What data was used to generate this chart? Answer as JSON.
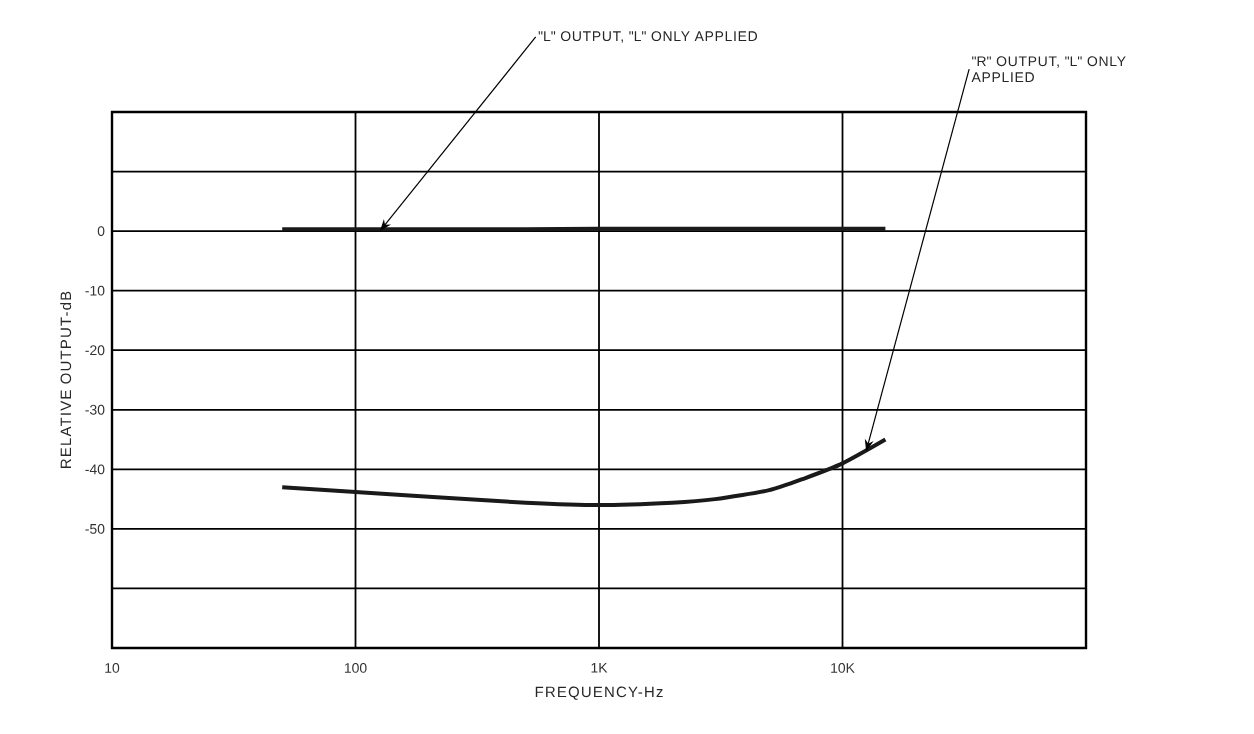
{
  "chart_data": {
    "type": "line",
    "xlabel": "FREQUENCY-Hz",
    "ylabel": "RELATIVE OUTPUT-dB",
    "log": "x",
    "grid": true,
    "xlim": [
      10,
      100000
    ],
    "ylim": [
      -70,
      20
    ],
    "xticks": [
      10,
      100,
      {
        "value": 1000,
        "label": "1K"
      },
      {
        "value": 10000,
        "label": "10K"
      }
    ],
    "yticks": [
      {
        "value": -70,
        "label": null
      },
      {
        "value": -60,
        "label": null
      },
      -50,
      -40,
      -30,
      -20,
      -10,
      0,
      {
        "value": 10,
        "label": null
      },
      {
        "value": 20,
        "label": null
      }
    ],
    "x": [
      50,
      100,
      200,
      500,
      1000,
      2000,
      3000,
      5000,
      7000,
      10000,
      15000
    ],
    "series": [
      {
        "color": "#1a1a1a",
        "values": [
          0.3,
          0.3,
          0.3,
          0.3,
          0.4,
          0.4,
          0.4,
          0.4,
          0.4,
          0.4,
          0.4
        ]
      },
      {
        "color": "#1a1a1a",
        "values": [
          -43,
          -43.8,
          -44.6,
          -45.6,
          -46,
          -45.6,
          -45,
          -43.5,
          -41.5,
          -39,
          -35
        ]
      }
    ],
    "annotations": [
      {
        "text": "\"L\" OUTPUT, \"L\" ONLY APPLIED",
        "x": 126,
        "y": 0
      },
      {
        "text": "\"R\" OUTPUT, \"L\" ONLY APPLIED",
        "x": 12500,
        "y": -37
      }
    ]
  }
}
